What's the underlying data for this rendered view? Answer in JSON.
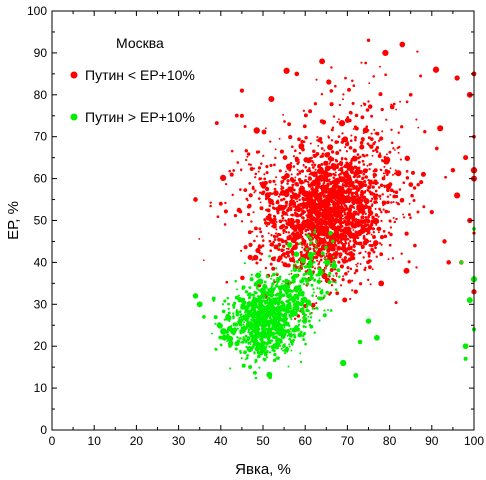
{
  "chart_data": {
    "type": "scatter",
    "title": "Москва",
    "xlabel": "Явка, %",
    "ylabel": "ЕР, %",
    "xlim": [
      0,
      100
    ],
    "ylim": [
      0,
      100
    ],
    "xticks": [
      0,
      10,
      20,
      30,
      40,
      50,
      60,
      70,
      80,
      90,
      100
    ],
    "yticks": [
      0,
      10,
      20,
      30,
      40,
      50,
      60,
      70,
      80,
      90,
      100
    ],
    "grid": false,
    "legend_position": "top-left",
    "series": [
      {
        "name": "Путин < ЕР+10%",
        "color": "#ff0000",
        "clusters": [
          {
            "x": 66,
            "y": 52,
            "sx": 6.5,
            "sy": 7,
            "n": 1700
          },
          {
            "x": 72,
            "y": 62,
            "sx": 8,
            "sy": 10,
            "n": 350
          },
          {
            "x": 56,
            "y": 48,
            "sx": 6,
            "sy": 8,
            "n": 250
          },
          {
            "x": 48,
            "y": 60,
            "sx": 5,
            "sy": 8,
            "n": 60
          }
        ],
        "points": [
          {
            "x": 91,
            "y": 86
          },
          {
            "x": 96,
            "y": 84
          },
          {
            "x": 100,
            "y": 85
          },
          {
            "x": 83,
            "y": 92
          },
          {
            "x": 75,
            "y": 93
          },
          {
            "x": 79,
            "y": 90
          },
          {
            "x": 85,
            "y": 80
          },
          {
            "x": 92,
            "y": 72
          },
          {
            "x": 88,
            "y": 61
          },
          {
            "x": 95,
            "y": 62
          },
          {
            "x": 90,
            "y": 52
          },
          {
            "x": 96,
            "y": 56
          },
          {
            "x": 100,
            "y": 70
          },
          {
            "x": 99,
            "y": 50
          },
          {
            "x": 100,
            "y": 47
          },
          {
            "x": 97,
            "y": 40
          },
          {
            "x": 93,
            "y": 45
          },
          {
            "x": 86,
            "y": 44
          },
          {
            "x": 84,
            "y": 38
          },
          {
            "x": 78,
            "y": 35
          },
          {
            "x": 72,
            "y": 33
          },
          {
            "x": 61,
            "y": 36
          },
          {
            "x": 100,
            "y": 33
          },
          {
            "x": 94,
            "y": 40
          },
          {
            "x": 45,
            "y": 81
          },
          {
            "x": 52,
            "y": 79
          },
          {
            "x": 40,
            "y": 54
          },
          {
            "x": 34,
            "y": 55
          },
          {
            "x": 45,
            "y": 75
          },
          {
            "x": 58,
            "y": 85
          },
          {
            "x": 64,
            "y": 88
          },
          {
            "x": 100,
            "y": 60
          },
          {
            "x": 100,
            "y": 62
          },
          {
            "x": 98,
            "y": 65
          },
          {
            "x": 99,
            "y": 80
          }
        ]
      },
      {
        "name": "Путин > ЕР+10%",
        "color": "#00ee00",
        "clusters": [
          {
            "x": 50,
            "y": 25.5,
            "sx": 4.2,
            "sy": 4.2,
            "n": 800
          },
          {
            "x": 56,
            "y": 31,
            "sx": 4,
            "sy": 4.5,
            "n": 250
          },
          {
            "x": 62,
            "y": 38,
            "sx": 3,
            "sy": 3.5,
            "n": 90
          }
        ],
        "points": [
          {
            "x": 75,
            "y": 26
          },
          {
            "x": 77,
            "y": 22
          },
          {
            "x": 69,
            "y": 16
          },
          {
            "x": 72,
            "y": 13
          },
          {
            "x": 35,
            "y": 30
          },
          {
            "x": 34,
            "y": 32
          },
          {
            "x": 36,
            "y": 27
          },
          {
            "x": 100,
            "y": 24
          },
          {
            "x": 99,
            "y": 31
          },
          {
            "x": 98,
            "y": 20
          },
          {
            "x": 98,
            "y": 17
          },
          {
            "x": 97,
            "y": 40
          },
          {
            "x": 100,
            "y": 36
          },
          {
            "x": 100,
            "y": 48
          },
          {
            "x": 73,
            "y": 21
          },
          {
            "x": 66,
            "y": 47
          }
        ]
      }
    ]
  }
}
